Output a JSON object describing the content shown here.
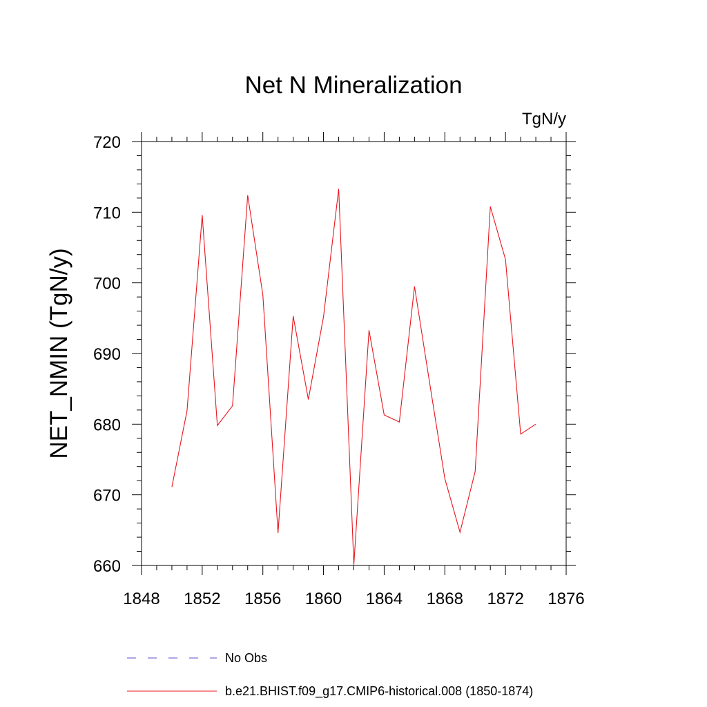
{
  "chart_data": {
    "type": "line",
    "title": "Net N Mineralization",
    "units_label": "TgN/y",
    "ylabel": "NET_NMIN  (TgN/y)",
    "xlabel": "",
    "xlim": [
      1848,
      1876
    ],
    "ylim": [
      660,
      720
    ],
    "x_ticks": [
      1848,
      1852,
      1856,
      1860,
      1864,
      1868,
      1872,
      1876
    ],
    "y_ticks": [
      660,
      670,
      680,
      690,
      700,
      710,
      720
    ],
    "grid": false,
    "legend_position": "bottom",
    "series": [
      {
        "name": "b.e21.BHIST.f09_g17.CMIP6-historical.008 (1850-1874)",
        "color": "#e8141c",
        "style": "solid",
        "x": [
          1850,
          1851,
          1852,
          1853,
          1854,
          1855,
          1856,
          1857,
          1858,
          1859,
          1860,
          1861,
          1862,
          1863,
          1864,
          1865,
          1866,
          1867,
          1868,
          1869,
          1870,
          1871,
          1872,
          1873,
          1874
        ],
        "y": [
          671.1,
          681.9,
          709.6,
          679.8,
          682.6,
          712.4,
          698.3,
          664.6,
          695.3,
          683.5,
          695.2,
          713.3,
          660.1,
          693.3,
          681.3,
          680.3,
          699.5,
          685.8,
          672.3,
          664.7,
          673.3,
          710.8,
          703.3,
          678.6,
          680.0
        ]
      }
    ],
    "legend": [
      {
        "label": "No Obs",
        "color": "#5b4fc9",
        "style": "dashed"
      },
      {
        "label": "b.e21.BHIST.f09_g17.CMIP6-historical.008 (1850-1874)",
        "color": "#e8141c",
        "style": "solid"
      }
    ]
  }
}
